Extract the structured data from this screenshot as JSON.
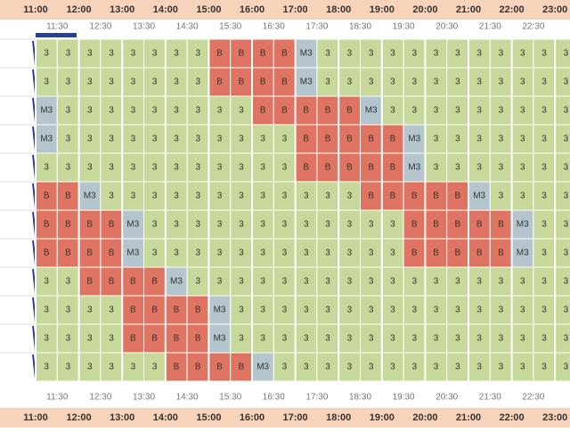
{
  "header": {
    "hours": [
      "11:00",
      "12:00",
      "13:00",
      "14:00",
      "15:00",
      "16:00",
      "17:00",
      "18:00",
      "19:00",
      "20:00",
      "21:00",
      "22:00",
      "23:00"
    ],
    "half_hours": [
      "11:30",
      "12:30",
      "13:30",
      "14:30",
      "15:30",
      "16:30",
      "17:30",
      "18:30",
      "19:30",
      "20:30",
      "21:30",
      "22:30"
    ]
  },
  "grid": {
    "rows": [
      [
        "3",
        "3",
        "3",
        "3",
        "3",
        "3",
        "3",
        "3",
        "B",
        "B",
        "B",
        "B",
        "M3",
        "3",
        "3",
        "3",
        "3",
        "3",
        "3",
        "3",
        "3",
        "3",
        "3",
        "3",
        "3"
      ],
      [
        "3",
        "3",
        "3",
        "3",
        "3",
        "3",
        "3",
        "3",
        "B",
        "B",
        "B",
        "B",
        "M3",
        "3",
        "3",
        "3",
        "3",
        "3",
        "3",
        "3",
        "3",
        "3",
        "3",
        "3",
        "3"
      ],
      [
        "M3",
        "3",
        "3",
        "3",
        "3",
        "3",
        "3",
        "3",
        "3",
        "3",
        "B",
        "B",
        "B",
        "B",
        "B",
        "M3",
        "3",
        "3",
        "3",
        "3",
        "3",
        "3",
        "3",
        "3",
        "3"
      ],
      [
        "M3",
        "3",
        "3",
        "3",
        "3",
        "3",
        "3",
        "3",
        "3",
        "3",
        "3",
        "3",
        "B",
        "B",
        "B",
        "B",
        "B",
        "M3",
        "3",
        "3",
        "3",
        "3",
        "3",
        "3",
        "3"
      ],
      [
        "3",
        "3",
        "3",
        "3",
        "3",
        "3",
        "3",
        "3",
        "3",
        "3",
        "3",
        "3",
        "B",
        "B",
        "B",
        "B",
        "B",
        "M3",
        "3",
        "3",
        "3",
        "3",
        "3",
        "3",
        "3"
      ],
      [
        "B",
        "B",
        "M3",
        "3",
        "3",
        "3",
        "3",
        "3",
        "3",
        "3",
        "3",
        "3",
        "3",
        "3",
        "3",
        "B",
        "B",
        "B",
        "B",
        "B",
        "M3",
        "3",
        "3",
        "3",
        "3"
      ],
      [
        "B",
        "B",
        "B",
        "B",
        "M3",
        "3",
        "3",
        "3",
        "3",
        "3",
        "3",
        "3",
        "3",
        "3",
        "3",
        "3",
        "3",
        "B",
        "B",
        "B",
        "B",
        "B",
        "M3",
        "3",
        "3"
      ],
      [
        "B",
        "B",
        "B",
        "B",
        "M3",
        "3",
        "3",
        "3",
        "3",
        "3",
        "3",
        "3",
        "3",
        "3",
        "3",
        "3",
        "3",
        "B",
        "B",
        "B",
        "B",
        "B",
        "M3",
        "3",
        "3"
      ],
      [
        "3",
        "3",
        "B",
        "B",
        "B",
        "B",
        "M3",
        "3",
        "3",
        "3",
        "3",
        "3",
        "3",
        "3",
        "3",
        "3",
        "3",
        "3",
        "3",
        "3",
        "3",
        "3",
        "3",
        "3",
        "3"
      ],
      [
        "3",
        "3",
        "3",
        "3",
        "B",
        "B",
        "B",
        "B",
        "M3",
        "3",
        "3",
        "3",
        "3",
        "3",
        "3",
        "3",
        "3",
        "3",
        "3",
        "3",
        "3",
        "3",
        "3",
        "3",
        "3"
      ],
      [
        "3",
        "3",
        "3",
        "3",
        "B",
        "B",
        "B",
        "B",
        "M3",
        "3",
        "3",
        "3",
        "3",
        "3",
        "3",
        "3",
        "3",
        "3",
        "3",
        "3",
        "3",
        "3",
        "3",
        "3",
        "3"
      ],
      [
        "3",
        "3",
        "3",
        "3",
        "3",
        "3",
        "B",
        "B",
        "B",
        "B",
        "M3",
        "3",
        "3",
        "3",
        "3",
        "3",
        "3",
        "3",
        "3",
        "3",
        "3",
        "3",
        "3",
        "3",
        "3"
      ]
    ]
  }
}
